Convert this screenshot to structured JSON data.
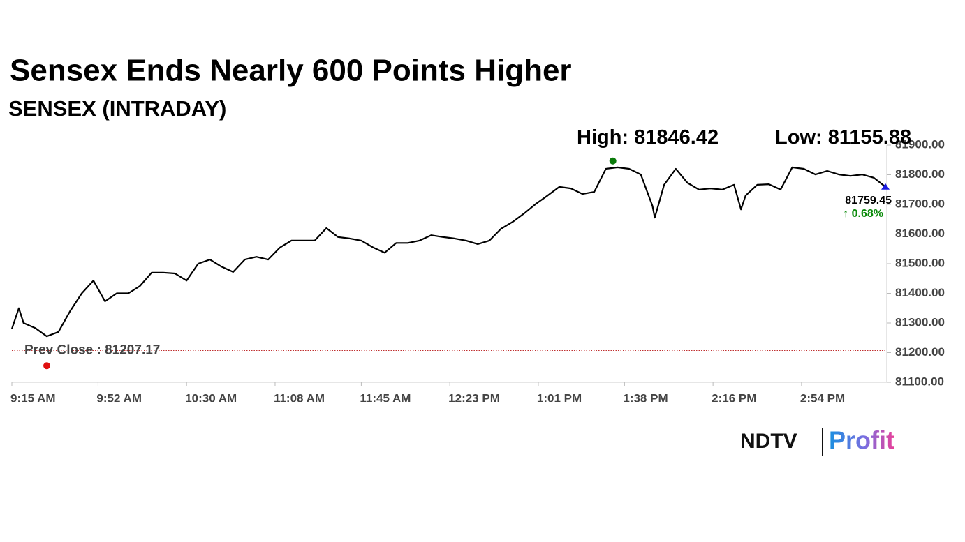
{
  "chart_data": {
    "type": "line",
    "title": "Sensex Ends Nearly 600 Points Higher",
    "subtitle": "SENSEX (INTRADAY)",
    "x": [
      "09:15",
      "09:18",
      "09:20",
      "09:25",
      "09:30",
      "09:35",
      "09:40",
      "09:45",
      "09:50",
      "09:55",
      "10:00",
      "10:05",
      "10:10",
      "10:15",
      "10:20",
      "10:25",
      "10:30",
      "10:35",
      "10:40",
      "10:45",
      "10:50",
      "10:55",
      "11:00",
      "11:05",
      "11:10",
      "11:15",
      "11:20",
      "11:25",
      "11:30",
      "11:35",
      "11:40",
      "11:45",
      "11:50",
      "11:55",
      "12:00",
      "12:05",
      "12:10",
      "12:15",
      "12:20",
      "12:25",
      "12:30",
      "12:35",
      "12:40",
      "12:45",
      "12:50",
      "12:55",
      "13:00",
      "13:05",
      "13:10",
      "13:15",
      "13:20",
      "13:25",
      "13:30",
      "13:35",
      "13:40",
      "13:45",
      "13:50",
      "13:51",
      "13:55",
      "14:00",
      "14:05",
      "14:10",
      "14:15",
      "14:20",
      "14:25",
      "14:28",
      "14:30",
      "14:35",
      "14:40",
      "14:45",
      "14:50",
      "14:55",
      "15:00",
      "15:05",
      "15:10",
      "15:15",
      "15:20",
      "15:25",
      "15:30"
    ],
    "series": [
      {
        "name": "SENSEX",
        "color": "#000000",
        "values": [
          81280,
          81350,
          81300,
          81283,
          81255,
          81270,
          81340,
          81400,
          81443,
          81373,
          81400,
          81400,
          81425,
          81470,
          81470,
          81467,
          81443,
          81500,
          81514,
          81490,
          81472,
          81514,
          81523,
          81514,
          81554,
          81578,
          81578,
          81578,
          81620,
          81590,
          81585,
          81578,
          81555,
          81537,
          81570,
          81570,
          81578,
          81596,
          81590,
          81585,
          81578,
          81566,
          81578,
          81618,
          81641,
          81670,
          81702,
          81730,
          81759,
          81754,
          81735,
          81742,
          81820,
          81825,
          81820,
          81801,
          81695,
          81655,
          81766,
          81820,
          81773,
          81750,
          81754,
          81750,
          81766,
          81683,
          81730,
          81766,
          81768,
          81750,
          81825,
          81820,
          81801,
          81813,
          81801,
          81796,
          81801,
          81790,
          81759.45
        ]
      }
    ],
    "xlim": [
      "09:15",
      "15:30"
    ],
    "xticks": [
      {
        "value": "09:15",
        "label": "9:15 AM"
      },
      {
        "value": "09:52",
        "label": "9:52 AM"
      },
      {
        "value": "10:30",
        "label": "10:30 AM"
      },
      {
        "value": "11:08",
        "label": "11:08 AM"
      },
      {
        "value": "11:45",
        "label": "11:45 AM"
      },
      {
        "value": "12:23",
        "label": "12:23 PM"
      },
      {
        "value": "13:01",
        "label": "1:01 PM"
      },
      {
        "value": "13:38",
        "label": "1:38 PM"
      },
      {
        "value": "14:16",
        "label": "2:16 PM"
      },
      {
        "value": "14:54",
        "label": "2:54 PM"
      }
    ],
    "ylim": [
      81100,
      81900
    ],
    "yticks": [
      {
        "value": 81100,
        "label": "81100.00"
      },
      {
        "value": 81200,
        "label": "81200.00"
      },
      {
        "value": 81300,
        "label": "81300.00"
      },
      {
        "value": 81400,
        "label": "81400.00"
      },
      {
        "value": 81500,
        "label": "81500.00"
      },
      {
        "value": 81600,
        "label": "81600.00"
      },
      {
        "value": 81700,
        "label": "81700.00"
      },
      {
        "value": 81800,
        "label": "81800.00"
      },
      {
        "value": 81900,
        "label": "81900.00"
      }
    ],
    "high": {
      "label": "High:",
      "value": 81846.42,
      "x": "13:33",
      "color": "#0a7a0a"
    },
    "low": {
      "label": "Low:",
      "value": 81155.88,
      "x": "09:30",
      "color": "#e01010"
    },
    "prev_close": {
      "label": "Prev Close :",
      "value": 81207.17,
      "color": "#c03030"
    },
    "last": {
      "value": 81759.45,
      "change_label": "↑ 0.68%",
      "color": "#1a1ae0",
      "change_color": "#0a8a0a"
    },
    "brand": [
      "NDTV",
      "Profit"
    ]
  }
}
